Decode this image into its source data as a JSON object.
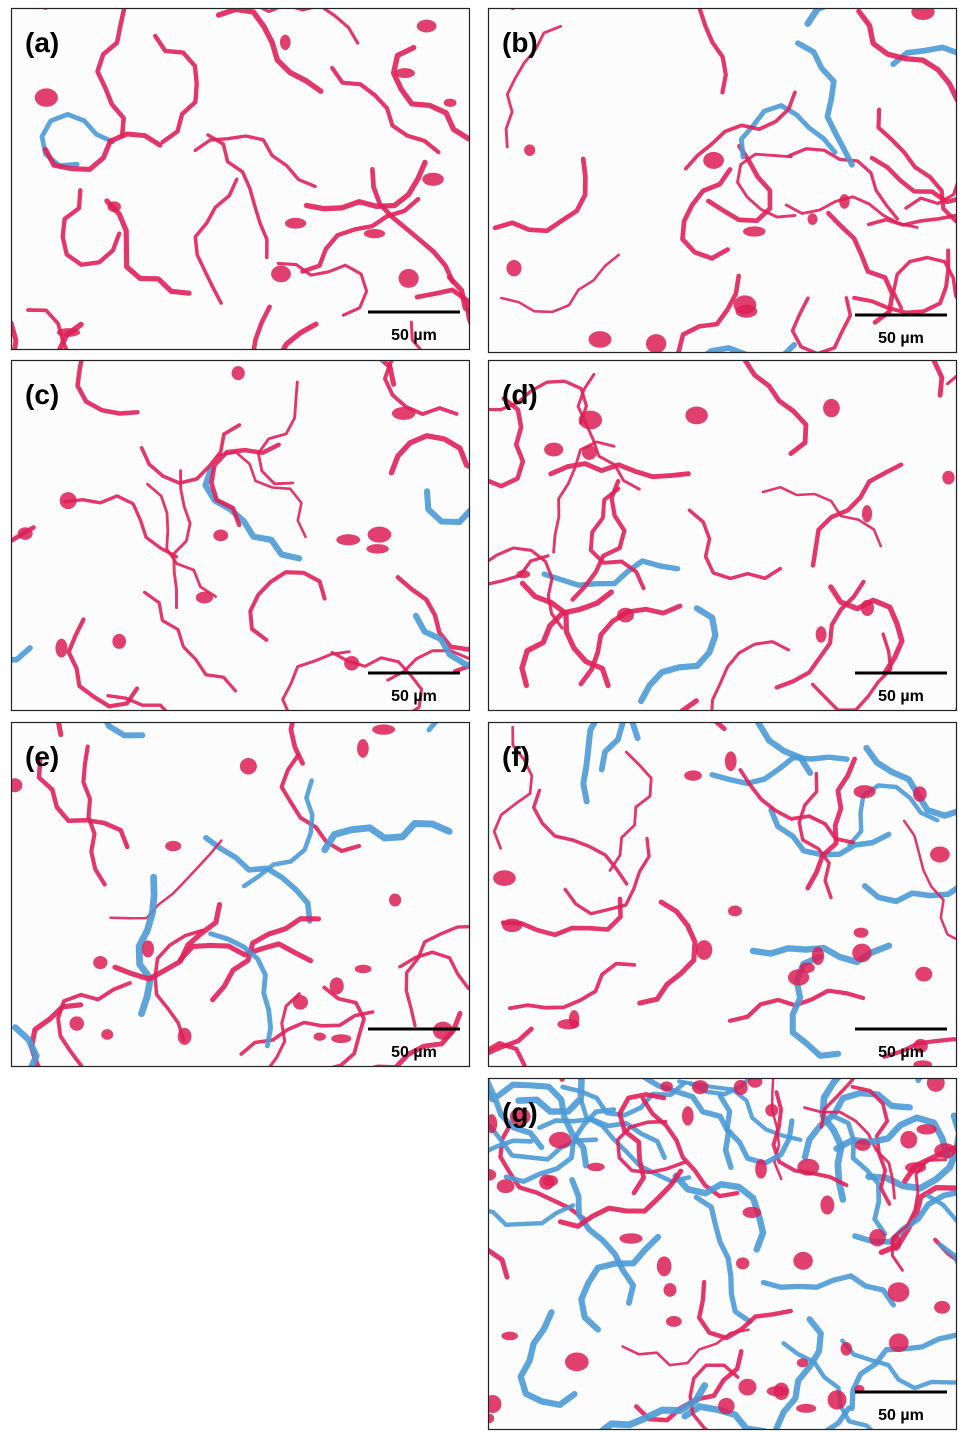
{
  "panels": [
    {
      "label": "(a)",
      "scale": "50 µm"
    },
    {
      "label": "(b)",
      "scale": "50 µm"
    },
    {
      "label": "(c)",
      "scale": "50 µm"
    },
    {
      "label": "(d)",
      "scale": "50 µm"
    },
    {
      "label": "(e)",
      "scale": "50 µm"
    },
    {
      "label": "(f)",
      "scale": "50 µm"
    },
    {
      "label": "(g)",
      "scale": "50 µm"
    }
  ]
}
